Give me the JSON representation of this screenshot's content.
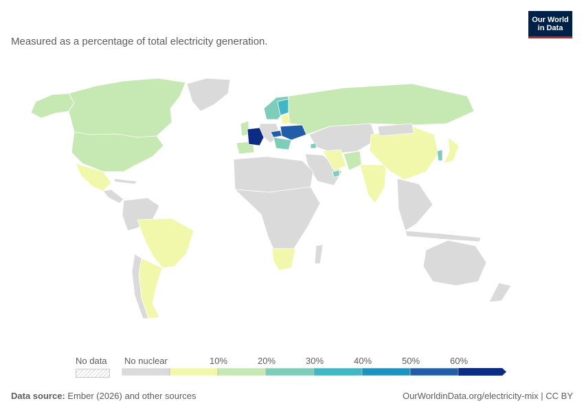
{
  "subtitle": "Measured as a percentage of total electricity generation.",
  "logo": {
    "line1": "Our World",
    "line2": "in Data"
  },
  "legend": {
    "no_data_label": "No data",
    "bins": [
      {
        "label": "No nuclear",
        "color": "#dadada"
      },
      {
        "label": "",
        "color": "#f2f8ab"
      },
      {
        "label": "10%",
        "color": "#c6e8b2"
      },
      {
        "label": "20%",
        "color": "#7ecdbb"
      },
      {
        "label": "30%",
        "color": "#41b6c4"
      },
      {
        "label": "40%",
        "color": "#1d91c0"
      },
      {
        "label": "50%",
        "color": "#225ea8"
      },
      {
        "label": "60%",
        "color": "#0c2c84"
      }
    ]
  },
  "footer": {
    "source_label": "Data source:",
    "source_text": "Ember (2026) and other sources",
    "link": "OurWorldinData.org/electricity-mix | CC BY"
  },
  "colors": {
    "none": "#dadada",
    "b0_10": "#f2f8ab",
    "b10_20": "#c6e8b2",
    "b20_30": "#7ecdbb",
    "b30_40": "#41b6c4",
    "b40_50": "#1d91c0",
    "b50_60": "#225ea8",
    "b60_plus": "#0c2c84"
  }
}
